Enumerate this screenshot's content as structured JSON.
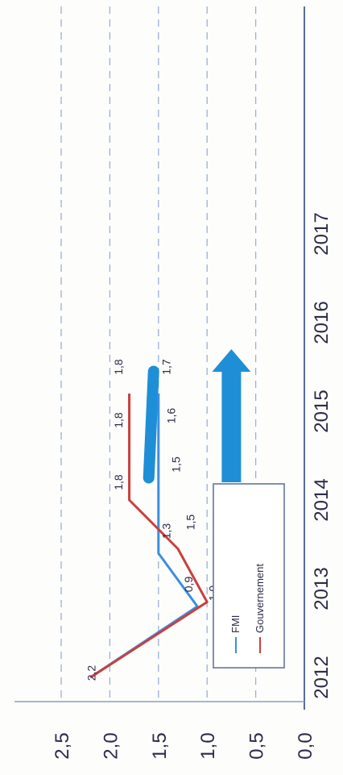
{
  "chart_data": {
    "type": "line",
    "title": "",
    "xlabel": "",
    "ylabel": "",
    "categories": [
      "2012",
      "2013",
      "2014",
      "2015",
      "2016",
      "2017"
    ],
    "ylim": [
      0.0,
      2.5
    ],
    "y_ticks": [
      "0,0",
      "0,5",
      "1,0",
      "1,5",
      "2,0",
      "2,5"
    ],
    "grid": true,
    "legend_position": "lower-center",
    "series": [
      {
        "name": "FMI",
        "color": "#3a8fe0",
        "x": [
          2012.0,
          2012.8,
          2013.4,
          2014.0,
          2015.2
        ],
        "values": [
          2.2,
          1.1,
          1.5,
          1.5,
          1.5
        ]
      },
      {
        "name": "Gouvernement",
        "color": "#c8403f",
        "x": [
          2012.0,
          2012.85,
          2013.45,
          2014.0,
          2015.2
        ],
        "values": [
          2.2,
          1.0,
          1.3,
          1.8,
          1.8
        ]
      }
    ],
    "data_labels": [
      {
        "text": "2,2",
        "x": 2012.05,
        "y": 2.15
      },
      {
        "text": "1,0",
        "x": 2012.95,
        "y": 0.9
      },
      {
        "text": "0,9",
        "x": 2013.05,
        "y": 1.15
      },
      {
        "text": "1,3",
        "x": 2013.65,
        "y": 1.38
      },
      {
        "text": "1,5",
        "x": 2013.75,
        "y": 1.13
      },
      {
        "text": "1,8",
        "x": 2014.2,
        "y": 1.87
      },
      {
        "text": "1,5",
        "x": 2014.4,
        "y": 1.28
      },
      {
        "text": "1,8",
        "x": 2014.9,
        "y": 1.87
      },
      {
        "text": "1,6",
        "x": 2014.95,
        "y": 1.33
      },
      {
        "text": "1,8",
        "x": 2015.5,
        "y": 1.87
      },
      {
        "text": "1,7",
        "x": 2015.5,
        "y": 1.38
      }
    ],
    "range_bar": {
      "color": "#1e8fd6",
      "x": [
        2014.25,
        2015.45
      ],
      "values": [
        1.6,
        1.55
      ]
    },
    "arrow": {
      "color": "#1e8fd6",
      "x": [
        2014.2,
        2015.7
      ],
      "y": 0.75,
      "direction": "up"
    }
  }
}
